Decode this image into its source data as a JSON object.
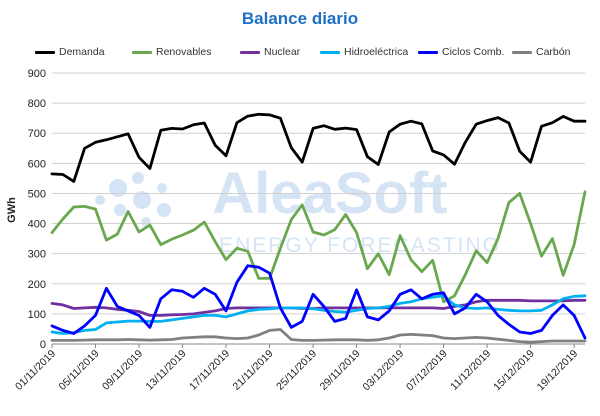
{
  "chart_data": {
    "type": "line",
    "title": "Balance diario",
    "xlabel": "",
    "ylabel": "GWh",
    "ylim": [
      0,
      900
    ],
    "yticks": [
      0,
      100,
      200,
      300,
      400,
      500,
      600,
      700,
      800,
      900
    ],
    "grid": true,
    "legend_position": "top",
    "x": [
      "01/11/2019",
      "02/11/2019",
      "03/11/2019",
      "04/11/2019",
      "05/11/2019",
      "06/11/2019",
      "07/11/2019",
      "08/11/2019",
      "09/11/2019",
      "10/11/2019",
      "11/11/2019",
      "12/11/2019",
      "13/11/2019",
      "14/11/2019",
      "15/11/2019",
      "16/11/2019",
      "17/11/2019",
      "18/11/2019",
      "19/11/2019",
      "20/11/2019",
      "21/11/2019",
      "22/11/2019",
      "23/11/2019",
      "24/11/2019",
      "25/11/2019",
      "26/11/2019",
      "27/11/2019",
      "28/11/2019",
      "29/11/2019",
      "30/11/2019",
      "01/12/2019",
      "02/12/2019",
      "03/12/2019",
      "04/12/2019",
      "05/12/2019",
      "06/12/2019",
      "07/12/2019",
      "08/12/2019",
      "09/12/2019",
      "10/12/2019",
      "11/12/2019",
      "12/12/2019",
      "13/12/2019",
      "14/12/2019",
      "15/12/2019",
      "16/12/2019",
      "17/12/2019",
      "18/12/2019",
      "19/12/2019",
      "20/12/2019"
    ],
    "xtick_labels": [
      "01/11/2019",
      "05/11/2019",
      "09/11/2019",
      "13/11/2019",
      "17/11/2019",
      "21/11/2019",
      "25/11/2019",
      "29/11/2019",
      "03/12/2019",
      "07/12/2019",
      "11/12/2019",
      "15/12/2019",
      "19/12/2019"
    ],
    "series": [
      {
        "name": "Demanda",
        "color": "#000000",
        "values": [
          565,
          563,
          540,
          650,
          670,
          678,
          688,
          698,
          620,
          583,
          710,
          716,
          714,
          728,
          734,
          660,
          625,
          735,
          757,
          763,
          761,
          750,
          652,
          604,
          716,
          725,
          713,
          717,
          712,
          622,
          596,
          704,
          730,
          740,
          731,
          641,
          628,
          597,
          670,
          730,
          742,
          752,
          734,
          640,
          604,
          723,
          735,
          756,
          740,
          740
        ]
      },
      {
        "name": "Renovables",
        "color": "#6aa84f",
        "values": [
          370,
          415,
          455,
          457,
          448,
          345,
          365,
          440,
          372,
          395,
          330,
          348,
          362,
          378,
          405,
          340,
          280,
          318,
          308,
          218,
          218,
          318,
          413,
          462,
          372,
          362,
          380,
          430,
          370,
          250,
          300,
          230,
          360,
          280,
          240,
          278,
          140,
          160,
          230,
          310,
          270,
          350,
          470,
          500,
          400,
          292,
          350,
          228,
          330,
          505
        ]
      },
      {
        "name": "Nuclear",
        "color": "#7030a0",
        "values": [
          135,
          130,
          118,
          120,
          122,
          120,
          115,
          112,
          108,
          95,
          95,
          97,
          98,
          100,
          105,
          110,
          118,
          120,
          120,
          120,
          120,
          120,
          120,
          118,
          118,
          120,
          120,
          120,
          120,
          120,
          120,
          120,
          120,
          120,
          120,
          120,
          118,
          125,
          130,
          140,
          145,
          145,
          145,
          145,
          143,
          143,
          143,
          143,
          145,
          145
        ]
      },
      {
        "name": "Hidroeléctrica",
        "color": "#00b0f0",
        "values": [
          40,
          35,
          38,
          45,
          48,
          70,
          73,
          76,
          76,
          75,
          75,
          80,
          85,
          90,
          95,
          95,
          90,
          100,
          110,
          115,
          117,
          120,
          120,
          120,
          117,
          112,
          108,
          106,
          112,
          118,
          120,
          125,
          135,
          140,
          150,
          155,
          160,
          130,
          120,
          118,
          120,
          115,
          112,
          110,
          110,
          112,
          130,
          150,
          158,
          160
        ]
      },
      {
        "name": "Ciclos Comb.",
        "color": "#0000ff",
        "values": [
          60,
          45,
          35,
          60,
          95,
          185,
          125,
          110,
          95,
          55,
          150,
          180,
          175,
          155,
          185,
          165,
          110,
          205,
          260,
          255,
          235,
          120,
          55,
          75,
          165,
          125,
          75,
          85,
          180,
          90,
          80,
          110,
          165,
          180,
          150,
          165,
          170,
          100,
          120,
          165,
          140,
          95,
          65,
          40,
          35,
          45,
          95,
          130,
          95,
          20
        ]
      },
      {
        "name": "Carbón",
        "color": "#808080",
        "values": [
          12,
          12,
          12,
          13,
          14,
          14,
          14,
          15,
          14,
          13,
          14,
          15,
          20,
          22,
          24,
          24,
          20,
          18,
          20,
          30,
          45,
          48,
          15,
          12,
          12,
          13,
          14,
          14,
          14,
          12,
          14,
          20,
          30,
          32,
          30,
          28,
          20,
          18,
          20,
          22,
          20,
          16,
          12,
          8,
          6,
          8,
          10,
          10,
          10,
          10
        ]
      }
    ]
  },
  "watermark": {
    "brand": "AleaSoft",
    "tagline": "ENERGY FORECASTING"
  }
}
